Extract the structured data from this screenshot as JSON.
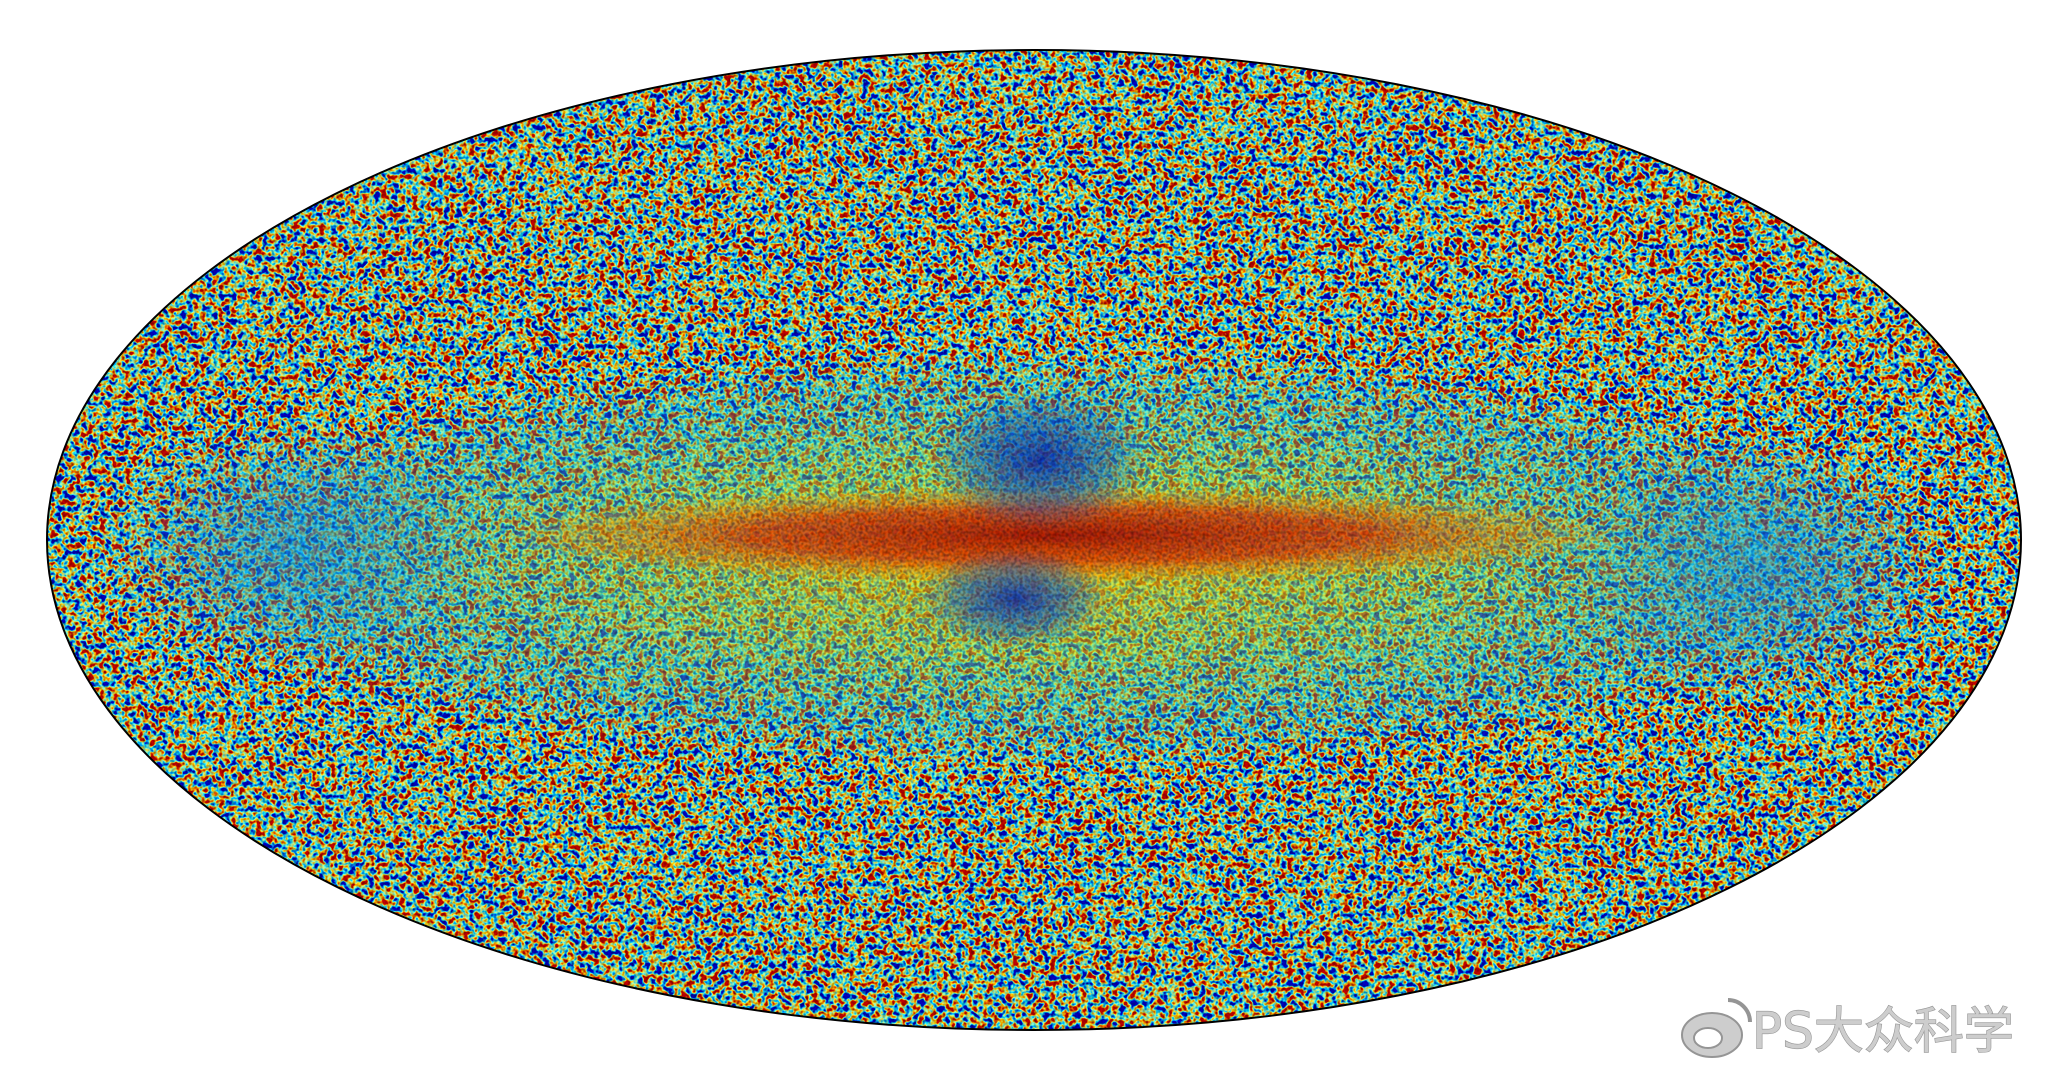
{
  "watermark": {
    "text": "PS大众科学"
  }
}
